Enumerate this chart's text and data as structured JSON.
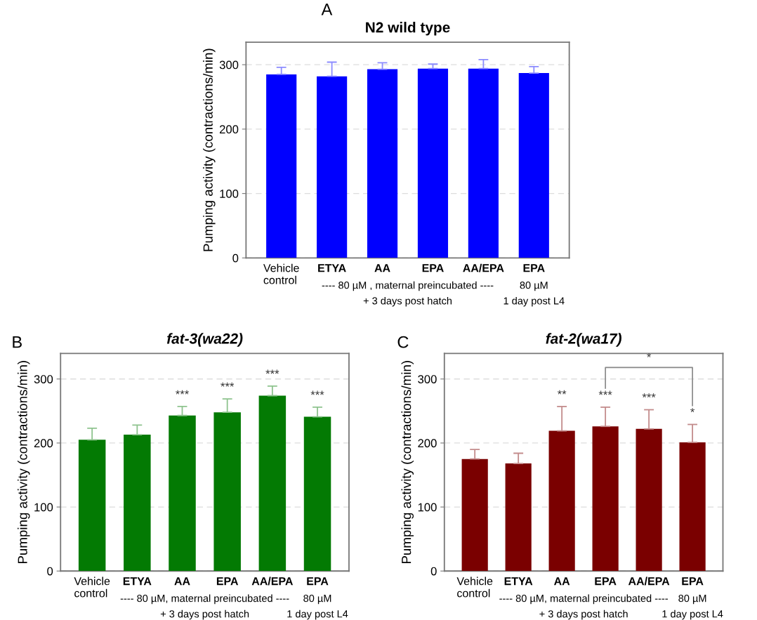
{
  "chart_data": [
    {
      "type": "bar",
      "title": "N2 wild type",
      "ylabel": "Pumping activity (contractions/min)",
      "categories": [
        "Vehicle\ncontrol",
        "ETYA",
        "AA",
        "EPA",
        "AA/EPA",
        "EPA"
      ],
      "values": [
        285,
        282,
        293,
        294,
        294,
        287
      ],
      "errors": [
        [
          285,
          296
        ],
        [
          282,
          304
        ],
        [
          293,
          303
        ],
        [
          294,
          301
        ],
        [
          294,
          308
        ],
        [
          287,
          297
        ]
      ],
      "color": "#0000ff",
      "ylim": [
        0,
        335
      ],
      "yticks": [
        0,
        100,
        200,
        300
      ],
      "grid": "y",
      "annotations": [
        "A",
        "---- 80 µM , maternal preincubated ----",
        "80 µM",
        "+ 3 days post hatch",
        "1 day post L4"
      ]
    },
    {
      "type": "bar",
      "title": "fat-3(wa22)",
      "ylabel": "Pumping activity (contractions/min)",
      "categories": [
        "Vehicle\ncontrol",
        "ETYA",
        "AA",
        "EPA",
        "AA/EPA",
        "EPA"
      ],
      "values": [
        205,
        213,
        243,
        248,
        274,
        241
      ],
      "errors": [
        [
          205,
          223
        ],
        [
          213,
          228
        ],
        [
          243,
          257
        ],
        [
          248,
          269
        ],
        [
          274,
          289
        ],
        [
          241,
          256
        ]
      ],
      "color": "#037a03",
      "value_labels": [
        null,
        null,
        "***",
        "***",
        "***",
        "***"
      ],
      "ylim": [
        0,
        340
      ],
      "yticks": [
        0,
        100,
        200,
        300
      ],
      "grid": "y",
      "annotations": [
        "B",
        "---- 80 µM, maternal preincubated ----",
        "80 µM",
        "+ 3 days post hatch",
        "1 day post L4"
      ]
    },
    {
      "type": "bar",
      "title": "fat-2(wa17)",
      "ylabel": "Pumping activity (contractions/min)",
      "categories": [
        "Vehicle\ncontrol",
        "ETYA",
        "AA",
        "EPA",
        "AA/EPA",
        "EPA"
      ],
      "values": [
        175,
        168,
        219,
        226,
        222,
        201
      ],
      "errors": [
        [
          175,
          190
        ],
        [
          168,
          184
        ],
        [
          219,
          257
        ],
        [
          226,
          256
        ],
        [
          222,
          252
        ],
        [
          201,
          229
        ]
      ],
      "color": "#7a0000",
      "value_labels": [
        null,
        null,
        "**",
        "***",
        "***",
        "*"
      ],
      "ylim": [
        0,
        340
      ],
      "yticks": [
        0,
        100,
        200,
        300
      ],
      "grid": "y",
      "annotations": [
        "C",
        "---- 80 µM, maternal preincubated ----",
        "80 µM",
        "+ 3 days post hatch",
        "1 day post L4",
        "*"
      ]
    }
  ]
}
